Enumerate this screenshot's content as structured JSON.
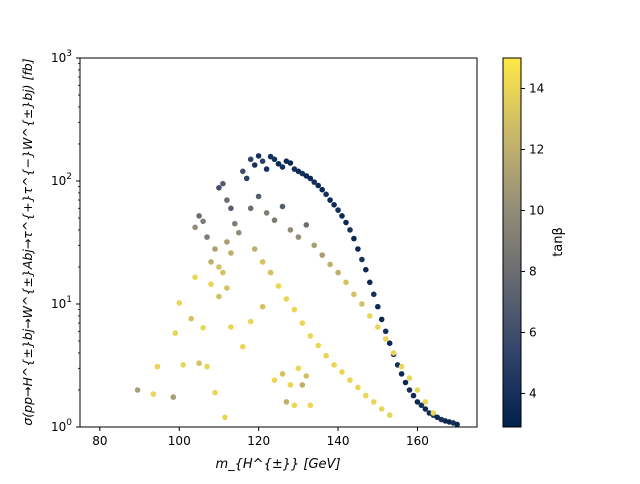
{
  "chart_data": {
    "type": "scatter",
    "title": "",
    "xlabel": "m_{H^{±}} [GeV]",
    "ylabel": "σ(pp→H^{±}bj→W^{±}Abj→τ^{+}τ^{−}W^{±}bj) [fb]",
    "xlim": [
      75,
      175
    ],
    "ylim": [
      1,
      1000
    ],
    "y_scale": "log",
    "grid": false,
    "x_ticks": [
      80,
      100,
      120,
      140,
      160
    ],
    "x_tick_labels": [
      "80",
      "100",
      "120",
      "140",
      "160"
    ],
    "y_ticks": [
      1,
      10,
      100,
      1000
    ],
    "y_tick_labels": [
      "10^0",
      "10^1",
      "10^2",
      "10^3"
    ],
    "colorbar": {
      "label": "tanβ",
      "colormap": "cividis",
      "range": [
        2.9,
        15
      ],
      "ticks": [
        4,
        6,
        8,
        10,
        12,
        14
      ],
      "tick_labels": [
        "4",
        "6",
        "8",
        "10",
        "12",
        "14"
      ],
      "colors": [
        "#00204c",
        "#31446b",
        "#666970",
        "#958f78",
        "#cbb969",
        "#ffe945"
      ]
    },
    "series": [
      {
        "points_note_free": true,
        "points": [
          [
            89.5,
            2.0,
            11
          ],
          [
            93.5,
            1.85,
            14
          ],
          [
            94.5,
            3.1,
            14
          ],
          [
            98.5,
            1.75,
            11
          ],
          [
            99,
            5.8,
            14
          ],
          [
            100,
            10.2,
            14
          ],
          [
            101,
            3.2,
            14
          ],
          [
            103,
            7.6,
            13
          ],
          [
            104,
            16.5,
            14
          ],
          [
            105,
            3.3,
            13
          ],
          [
            106,
            6.4,
            14
          ],
          [
            107,
            3.1,
            14
          ],
          [
            108,
            14.5,
            14
          ],
          [
            109,
            1.9,
            14
          ],
          [
            110,
            11.5,
            13
          ],
          [
            111.5,
            1.2,
            14
          ],
          [
            112,
            13.5,
            13
          ],
          [
            113,
            6.5,
            14
          ],
          [
            116,
            4.5,
            14
          ],
          [
            118,
            7.2,
            14
          ],
          [
            121,
            9.5,
            13
          ],
          [
            124,
            2.4,
            14
          ],
          [
            126,
            2.7,
            13
          ],
          [
            128,
            2.2,
            14
          ],
          [
            130,
            3.0,
            14
          ],
          [
            132,
            2.6,
            13
          ],
          [
            133,
            1.5,
            14
          ],
          [
            127,
            1.6,
            12
          ],
          [
            129,
            1.5,
            14
          ],
          [
            131,
            2.2,
            12
          ],
          [
            105,
            52,
            8
          ],
          [
            106,
            47,
            9
          ],
          [
            104,
            42,
            10
          ],
          [
            107,
            35,
            9
          ],
          [
            109,
            28,
            11
          ],
          [
            108,
            22,
            12
          ],
          [
            110,
            88,
            6
          ],
          [
            111,
            95,
            7
          ],
          [
            112,
            70,
            8
          ],
          [
            113,
            60,
            7
          ],
          [
            114,
            45,
            9
          ],
          [
            115,
            38,
            10
          ],
          [
            112,
            32,
            11
          ],
          [
            113,
            26,
            12
          ],
          [
            110,
            20,
            13
          ],
          [
            111,
            18,
            13
          ],
          [
            116,
            120,
            6
          ],
          [
            117,
            105,
            5
          ],
          [
            118,
            150,
            5
          ],
          [
            119,
            135,
            4
          ],
          [
            120,
            160,
            4
          ],
          [
            121,
            145,
            5
          ],
          [
            122,
            125,
            4
          ],
          [
            123,
            158,
            4
          ],
          [
            124,
            150,
            4
          ],
          [
            125,
            138,
            3.5
          ],
          [
            126,
            130,
            4
          ],
          [
            127,
            145,
            3.5
          ],
          [
            128,
            140,
            3.5
          ],
          [
            129,
            125,
            4
          ],
          [
            130,
            120,
            3.5
          ],
          [
            131,
            115,
            4
          ],
          [
            132,
            110,
            3.5
          ],
          [
            133,
            105,
            3.5
          ],
          [
            134,
            98,
            4
          ],
          [
            135,
            92,
            3.5
          ],
          [
            136,
            85,
            3.5
          ],
          [
            137,
            78,
            4
          ],
          [
            138,
            70,
            3.5
          ],
          [
            139,
            64,
            3.5
          ],
          [
            140,
            58,
            4
          ],
          [
            141,
            52,
            3.5
          ],
          [
            142,
            46,
            3.5
          ],
          [
            143,
            40,
            4
          ],
          [
            144,
            34,
            3.5
          ],
          [
            145,
            28,
            3.5
          ],
          [
            146,
            23,
            4
          ],
          [
            147,
            19,
            3.5
          ],
          [
            148,
            15,
            3.5
          ],
          [
            149,
            12,
            4
          ],
          [
            150,
            9.5,
            3.5
          ],
          [
            151,
            7.5,
            3.5
          ],
          [
            152,
            6.0,
            4
          ],
          [
            153,
            4.8,
            3.5
          ],
          [
            154,
            3.9,
            3.5
          ],
          [
            155,
            3.2,
            4
          ],
          [
            156,
            2.7,
            3.5
          ],
          [
            157,
            2.3,
            3.5
          ],
          [
            158,
            2.0,
            4
          ],
          [
            159,
            1.8,
            3.5
          ],
          [
            160,
            1.6,
            3.5
          ],
          [
            161,
            1.5,
            4
          ],
          [
            162,
            1.4,
            3.5
          ],
          [
            163,
            1.3,
            3.5
          ],
          [
            164,
            1.25,
            4
          ],
          [
            165,
            1.2,
            3.5
          ],
          [
            166,
            1.15,
            4
          ],
          [
            167,
            1.12,
            3.5
          ],
          [
            168,
            1.1,
            3.5
          ],
          [
            169,
            1.08,
            4
          ],
          [
            170,
            1.05,
            3.5
          ],
          [
            118,
            60,
            8
          ],
          [
            120,
            75,
            7
          ],
          [
            122,
            55,
            9
          ],
          [
            124,
            48,
            9
          ],
          [
            126,
            62,
            7
          ],
          [
            128,
            40,
            10
          ],
          [
            130,
            35,
            10
          ],
          [
            132,
            44,
            8
          ],
          [
            134,
            30,
            11
          ],
          [
            136,
            25,
            11
          ],
          [
            138,
            21,
            12
          ],
          [
            140,
            18,
            12
          ],
          [
            142,
            15,
            13
          ],
          [
            144,
            12,
            13
          ],
          [
            146,
            10,
            13
          ],
          [
            148,
            8.0,
            14
          ],
          [
            150,
            6.5,
            14
          ],
          [
            152,
            5.2,
            14
          ],
          [
            154,
            4.0,
            14
          ],
          [
            156,
            3.1,
            14
          ],
          [
            158,
            2.5,
            14
          ],
          [
            160,
            2.0,
            14
          ],
          [
            162,
            1.6,
            14
          ],
          [
            164,
            1.3,
            14
          ],
          [
            119,
            28,
            12
          ],
          [
            121,
            22,
            13
          ],
          [
            123,
            18,
            13
          ],
          [
            125,
            14,
            14
          ],
          [
            127,
            11,
            14
          ],
          [
            129,
            9,
            14
          ],
          [
            131,
            7,
            14
          ],
          [
            133,
            5.5,
            14
          ],
          [
            135,
            4.6,
            14
          ],
          [
            137,
            3.8,
            14
          ],
          [
            139,
            3.2,
            14
          ],
          [
            141,
            2.8,
            14
          ],
          [
            143,
            2.4,
            14
          ],
          [
            145,
            2.1,
            14
          ],
          [
            147,
            1.8,
            14
          ],
          [
            149,
            1.6,
            14
          ],
          [
            151,
            1.4,
            14
          ],
          [
            153,
            1.25,
            14
          ]
        ]
      }
    ]
  }
}
